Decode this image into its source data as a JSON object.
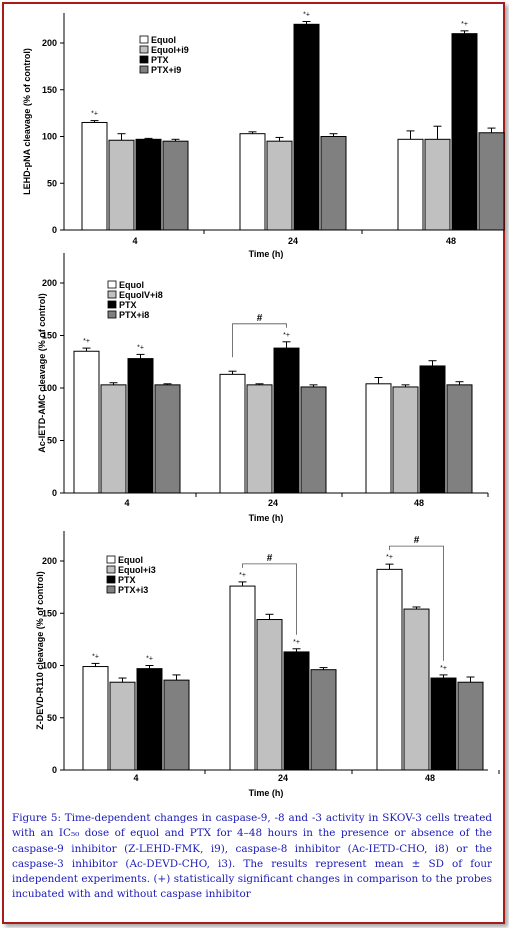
{
  "figure": {
    "caption": "Figure 5: Time-dependent changes in caspase-9, -8 and -3 activity in SKOV-3 cells treated with an IC₅₀ dose of equol and PTX for 4–48 hours in the presence or absence of the caspase-9 inhibitor (Z-LEHD-FMK, i9), caspase-8 inhibitor (Ac-IETD-CHO, i8) or the caspase-3 inhibitor (Ac-DEVD-CHO, i3). The results represent mean ± SD of four independent experiments. (+) statistically significant changes in comparison to the probes incubated with and without caspase inhibitor"
  },
  "colors": {
    "frame": "#a61c1c",
    "caption": "#1a1ab8"
  },
  "chart_data": [
    {
      "type": "bar",
      "categories": [
        "4",
        "24",
        "48"
      ],
      "xlabel": "Time (h)",
      "ylabel": "LEHD-pNA cleavage (% of control)",
      "ylim": [
        0,
        200
      ],
      "yticks": [
        0,
        50,
        100,
        150,
        200
      ],
      "legend_position": "top-left",
      "series": [
        {
          "name": "Equol",
          "color": "#ffffff",
          "values": [
            115,
            103,
            97
          ],
          "errors": [
            2,
            2,
            9
          ]
        },
        {
          "name": "Equol+i9",
          "color": "#c0c0c0",
          "values": [
            96,
            95,
            97
          ],
          "errors": [
            7,
            4,
            14
          ]
        },
        {
          "name": "PTX",
          "color": "#000000",
          "values": [
            97,
            220,
            210
          ],
          "errors": [
            1,
            3,
            3
          ]
        },
        {
          "name": "PTX+i9",
          "color": "#808080",
          "values": [
            95,
            100,
            104
          ],
          "errors": [
            2,
            3,
            5
          ]
        }
      ],
      "annotations": [
        {
          "category": 0,
          "series": 0,
          "text": "*+"
        },
        {
          "category": 1,
          "series": 2,
          "text": "*+"
        },
        {
          "category": 2,
          "series": 2,
          "text": "*+"
        }
      ],
      "brackets": []
    },
    {
      "type": "bar",
      "categories": [
        "4",
        "24",
        "48"
      ],
      "xlabel": "Time (h)",
      "ylabel": "Ac-IETD-AMC cleavage (% of control)",
      "ylim": [
        0,
        200
      ],
      "yticks": [
        0,
        50,
        100,
        150,
        200
      ],
      "legend_position": "top-left",
      "series": [
        {
          "name": "Equol",
          "color": "#ffffff",
          "values": [
            135,
            113,
            104
          ],
          "errors": [
            3,
            3,
            6
          ]
        },
        {
          "name": "EquolV+i8",
          "color": "#c0c0c0",
          "values": [
            103,
            103,
            101
          ],
          "errors": [
            2,
            1,
            2
          ]
        },
        {
          "name": "PTX",
          "color": "#000000",
          "values": [
            128,
            138,
            121
          ],
          "errors": [
            4,
            6,
            5
          ]
        },
        {
          "name": "PTX+i8",
          "color": "#808080",
          "values": [
            103,
            101,
            103
          ],
          "errors": [
            1,
            2,
            3
          ]
        }
      ],
      "annotations": [
        {
          "category": 0,
          "series": 0,
          "text": "*+"
        },
        {
          "category": 0,
          "series": 2,
          "text": "*+"
        },
        {
          "category": 1,
          "series": 2,
          "text": "*+"
        }
      ],
      "brackets": [
        {
          "category": 1,
          "from": 0,
          "to": 2,
          "text": "#"
        }
      ]
    },
    {
      "type": "bar",
      "categories": [
        "4",
        "24",
        "48"
      ],
      "xlabel": "Time (h)",
      "ylabel": "Z-DEVD-R110 cleavage (% of control)",
      "ylim": [
        0,
        200
      ],
      "yticks": [
        0,
        50,
        100,
        150,
        200
      ],
      "legend_position": "top-left",
      "series": [
        {
          "name": "Equol",
          "color": "#ffffff",
          "values": [
            99,
            176,
            192
          ],
          "errors": [
            3,
            4,
            5
          ]
        },
        {
          "name": "Equol+i3",
          "color": "#c0c0c0",
          "values": [
            84,
            144,
            154
          ],
          "errors": [
            4,
            5,
            2
          ]
        },
        {
          "name": "PTX",
          "color": "#000000",
          "values": [
            97,
            113,
            88
          ],
          "errors": [
            3,
            3,
            3
          ]
        },
        {
          "name": "PTX+i3",
          "color": "#808080",
          "values": [
            86,
            96,
            84
          ],
          "errors": [
            5,
            2,
            5
          ]
        }
      ],
      "annotations": [
        {
          "category": 0,
          "series": 0,
          "text": "*+"
        },
        {
          "category": 0,
          "series": 2,
          "text": "*+"
        },
        {
          "category": 1,
          "series": 0,
          "text": "*+"
        },
        {
          "category": 1,
          "series": 2,
          "text": "*+"
        },
        {
          "category": 2,
          "series": 0,
          "text": "*+"
        },
        {
          "category": 2,
          "series": 2,
          "text": "*+"
        }
      ],
      "brackets": [
        {
          "category": 1,
          "from": 0,
          "to": 2,
          "text": "#"
        },
        {
          "category": 2,
          "from": 0,
          "to": 2,
          "text": "#"
        }
      ]
    }
  ]
}
